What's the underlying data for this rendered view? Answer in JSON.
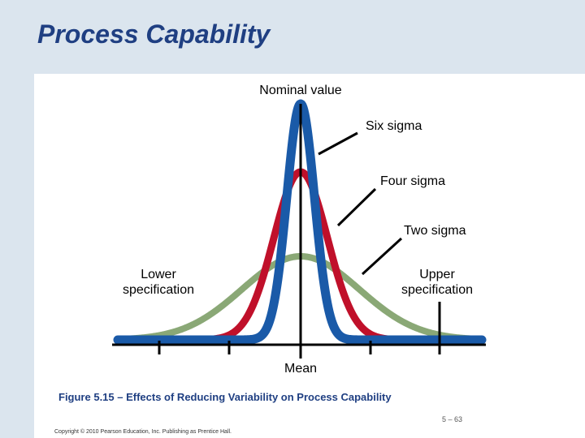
{
  "slide": {
    "title": "Process Capability",
    "caption": "Figure 5.15 – Effects of Reducing Variability on Process Capability",
    "page_number": "5 – 63",
    "copyright": "Copyright © 2010 Pearson Education, Inc. Publishing as Prentice Hall."
  },
  "diagram": {
    "labels": {
      "nominal": "Nominal value",
      "six_sigma": "Six sigma",
      "four_sigma": "Four sigma",
      "two_sigma": "Two sigma",
      "lower_spec": "Lower\nspecification",
      "upper_spec": "Upper\nspecification",
      "mean": "Mean"
    },
    "curves": [
      {
        "name": "Two sigma",
        "color": "#8aa876"
      },
      {
        "name": "Four sigma",
        "color": "#c0102a"
      },
      {
        "name": "Six sigma",
        "color": "#1a5aa8"
      }
    ],
    "axis_color": "#000000",
    "accent_title_color": "#1f3f82"
  }
}
